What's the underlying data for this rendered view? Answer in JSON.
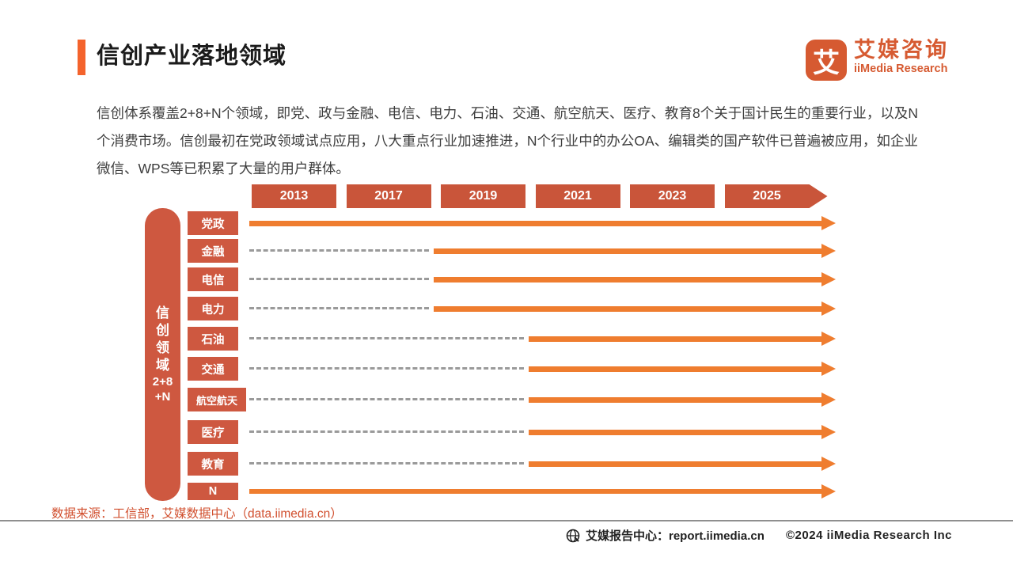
{
  "colors": {
    "accent": "#F4632C",
    "year_box": "#C9553A",
    "label_box": "#CE5840",
    "arrow": "#EF7D2F",
    "dash": "#9a9a9a",
    "logo": "#D65A31",
    "source_text": "#D14F2E"
  },
  "header": {
    "title": "信创产业落地领域",
    "logo": {
      "icon_char": "艾",
      "name_cn": "艾媒咨询",
      "name_en": "iiMedia Research"
    }
  },
  "intro": "信创体系覆盖2+8+N个领域，即党、政与金融、电信、电力、石油、交通、航空航天、医疗、教育8个关于国计民生的重要行业，以及N个消费市场。信创最初在党政领域试点应用，八大重点行业加速推进，N个行业中的办公OA、编辑类的国产软件已普遍被应用，如企业微信、WPS等已积累了大量的用户群体。",
  "chart_data": {
    "type": "timeline",
    "title": "信创产业落地领域",
    "years": [
      "2013",
      "2017",
      "2019",
      "2021",
      "2023",
      "2025"
    ],
    "axis_label": "信创领域2+8+N",
    "axis_label_lines": [
      "信",
      "创",
      "领",
      "域",
      "2+8",
      "+N"
    ],
    "legend_note": "dashed = not yet adopted, solid orange arrow = adoption period",
    "rows": [
      {
        "label": "党政",
        "adopted_from": "2013"
      },
      {
        "label": "金融",
        "adopted_from": "2019"
      },
      {
        "label": "电信",
        "adopted_from": "2019"
      },
      {
        "label": "电力",
        "adopted_from": "2019"
      },
      {
        "label": "石油",
        "adopted_from": "2021"
      },
      {
        "label": "交通",
        "adopted_from": "2021"
      },
      {
        "label": "航空航天",
        "adopted_from": "2021"
      },
      {
        "label": "医疗",
        "adopted_from": "2021"
      },
      {
        "label": "教育",
        "adopted_from": "2021"
      },
      {
        "label": "N",
        "adopted_from": "2013"
      }
    ]
  },
  "source": "数据来源：工信部，艾媒数据中心（data.iimedia.cn）",
  "footer": {
    "report_center": "艾媒报告中心：report.iimedia.cn",
    "copyright": "©2024  iiMedia Research Inc"
  }
}
